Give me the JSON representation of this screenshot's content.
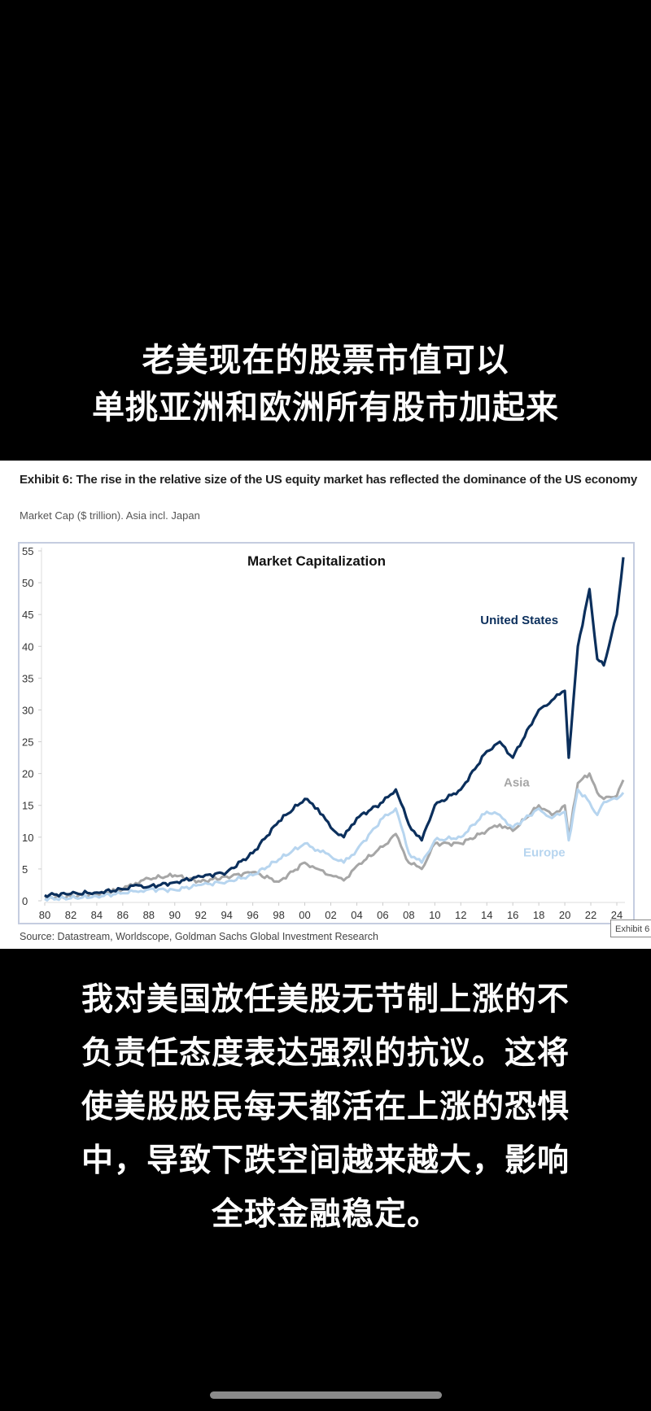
{
  "caption_top": {
    "line1": "老美现在的股票市值可以",
    "line2": "单挑亚洲和欧洲所有股市加起来"
  },
  "exhibit": {
    "title": "Exhibit 6: The rise in the relative size of the US equity market has reflected the dominance of the US economy",
    "subtitle": "Market Cap ($ trillion). Asia incl. Japan",
    "source": "Source: Datastream, Worldscope, Goldman Sachs Global Investment Research",
    "tag": "Exhibit 6"
  },
  "chart_data": {
    "type": "line",
    "title": "Market Capitalization",
    "xlabel": "",
    "ylabel": "Market Cap ($ trillion)",
    "ylim": [
      0,
      55
    ],
    "yticks": [
      0,
      5,
      10,
      15,
      20,
      25,
      30,
      35,
      40,
      45,
      50,
      55
    ],
    "xticks": [
      "80",
      "82",
      "84",
      "86",
      "88",
      "90",
      "92",
      "94",
      "96",
      "98",
      "00",
      "02",
      "04",
      "06",
      "08",
      "10",
      "12",
      "14",
      "16",
      "18",
      "20",
      "22",
      "24"
    ],
    "grid": false,
    "legend": "inline labels",
    "x": [
      1980,
      1982,
      1984,
      1986,
      1987,
      1988,
      1990,
      1992,
      1994,
      1996,
      1998,
      2000,
      2001,
      2002,
      2003,
      2004,
      2006,
      2007,
      2008,
      2009,
      2010,
      2012,
      2014,
      2015,
      2016,
      2018,
      2019,
      2020,
      2020.3,
      2021,
      2021.9,
      2022.5,
      2023,
      2024,
      2024.5
    ],
    "series": [
      {
        "name": "United States",
        "color": "#0b2f5c",
        "label_pos": [
          2013.5,
          43.5
        ],
        "values": [
          0.9,
          1.1,
          1.3,
          1.8,
          2.5,
          2.2,
          2.9,
          3.8,
          4.5,
          7.5,
          12.5,
          16.0,
          14.5,
          11.5,
          10.0,
          13.0,
          15.5,
          17.5,
          12.0,
          9.5,
          15.0,
          17.5,
          23.5,
          25.0,
          22.5,
          30.0,
          31.5,
          33.0,
          22.5,
          40.0,
          49.0,
          38.0,
          37.0,
          45.0,
          54.0
        ]
      },
      {
        "name": "Asia",
        "color": "#a6a6a6",
        "label_pos": [
          2015.3,
          18.0
        ],
        "values": [
          0.5,
          0.7,
          1.0,
          1.8,
          2.8,
          3.5,
          4.0,
          3.0,
          3.8,
          4.5,
          3.0,
          6.0,
          5.0,
          4.0,
          3.2,
          5.5,
          8.5,
          10.5,
          6.0,
          5.0,
          9.0,
          9.0,
          11.0,
          12.0,
          11.0,
          15.0,
          13.5,
          15.0,
          10.0,
          18.5,
          20.0,
          17.0,
          16.0,
          16.5,
          19.0
        ]
      },
      {
        "name": "Europe",
        "color": "#b7d5ef",
        "label_pos": [
          2016.8,
          7.0
        ],
        "values": [
          0.3,
          0.4,
          0.7,
          1.2,
          1.5,
          1.8,
          1.7,
          2.5,
          3.0,
          4.0,
          6.5,
          9.0,
          8.0,
          7.0,
          6.0,
          8.0,
          13.0,
          14.5,
          7.5,
          6.0,
          9.5,
          10.0,
          14.0,
          13.5,
          11.5,
          14.5,
          13.0,
          14.0,
          9.5,
          17.5,
          15.5,
          13.5,
          15.5,
          16.0,
          17.0
        ]
      }
    ]
  },
  "caption_bottom": {
    "line1": "我对美国放任美股无节制上涨的不",
    "line2": "负责任态度表达强烈的抗议。这将",
    "line3": "使美股股民每天都活在上涨的恐惧",
    "line4": "中，导致下跌空间越来越大，影响",
    "line5": "全球金融稳定。"
  }
}
